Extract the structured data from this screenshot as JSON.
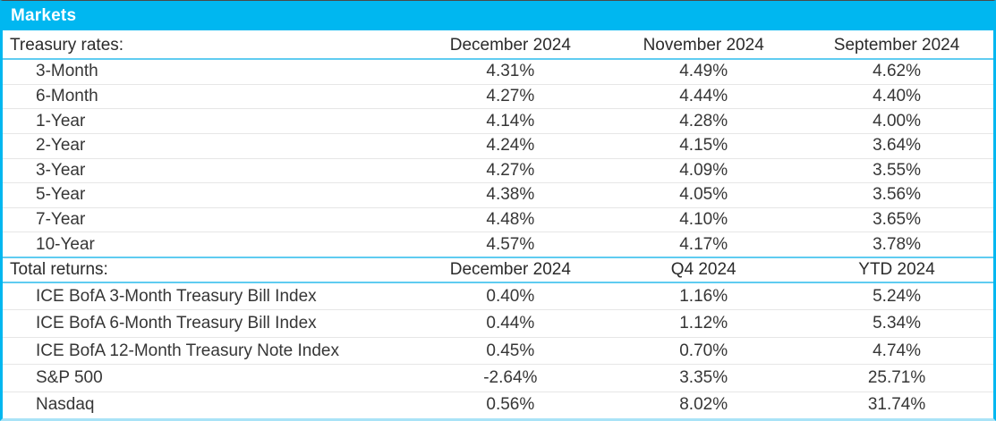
{
  "title": "Markets",
  "colors": {
    "accent_cyan": "#00b7f0",
    "divider_cyan": "#5fccf1",
    "row_separator": "#e6e6e6",
    "text": "#363636"
  },
  "treasury": {
    "label": "Treasury rates:",
    "columns": [
      "December 2024",
      "November 2024",
      "September 2024"
    ],
    "rows": [
      {
        "label": "3-Month",
        "values": [
          "4.31%",
          "4.49%",
          "4.62%"
        ]
      },
      {
        "label": "6-Month",
        "values": [
          "4.27%",
          "4.44%",
          "4.40%"
        ]
      },
      {
        "label": "1-Year",
        "values": [
          "4.14%",
          "4.28%",
          "4.00%"
        ]
      },
      {
        "label": "2-Year",
        "values": [
          "4.24%",
          "4.15%",
          "3.64%"
        ]
      },
      {
        "label": "3-Year",
        "values": [
          "4.27%",
          "4.09%",
          "3.55%"
        ]
      },
      {
        "label": "5-Year",
        "values": [
          "4.38%",
          "4.05%",
          "3.56%"
        ]
      },
      {
        "label": "7-Year",
        "values": [
          "4.48%",
          "4.10%",
          "3.65%"
        ]
      },
      {
        "label": "10-Year",
        "values": [
          "4.57%",
          "4.17%",
          "3.78%"
        ]
      }
    ]
  },
  "returns": {
    "label": "Total returns:",
    "columns": [
      "December 2024",
      "Q4 2024",
      "YTD 2024"
    ],
    "rows": [
      {
        "label": "ICE BofA 3-Month Treasury Bill Index",
        "values": [
          "0.40%",
          "1.16%",
          "5.24%"
        ]
      },
      {
        "label": "ICE BofA 6-Month Treasury Bill Index",
        "values": [
          "0.44%",
          "1.12%",
          "5.34%"
        ]
      },
      {
        "label": "ICE BofA 12-Month Treasury Note Index",
        "values": [
          "0.45%",
          "0.70%",
          "4.74%"
        ]
      },
      {
        "label": "S&P 500",
        "values": [
          "-2.64%",
          "3.35%",
          "25.71%"
        ]
      },
      {
        "label": "Nasdaq",
        "values": [
          "0.56%",
          "8.02%",
          "31.74%"
        ]
      }
    ]
  }
}
